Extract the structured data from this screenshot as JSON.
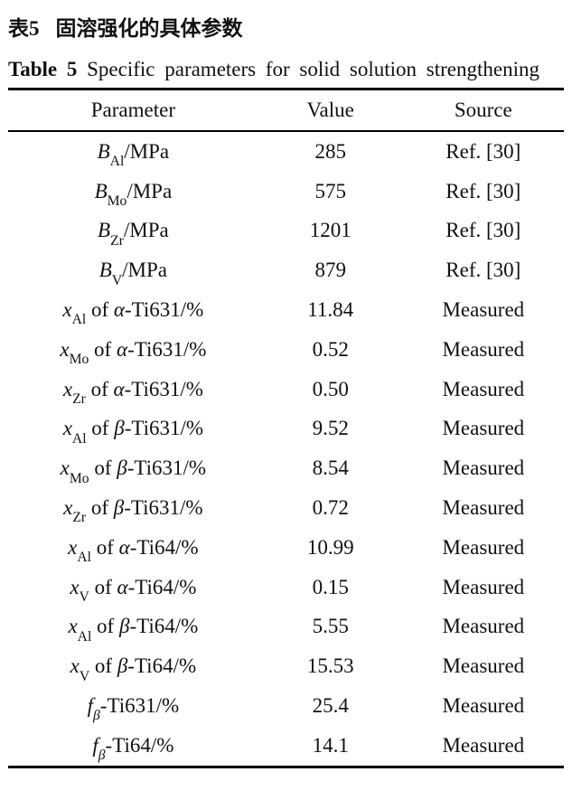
{
  "caption": {
    "zh_label": "表5",
    "zh_title": "固溶强化的具体参数",
    "en_label": "Table 5",
    "en_title": "Specific parameters for solid solution strengthening"
  },
  "table": {
    "columns": [
      "Parameter",
      "Value",
      "Source"
    ],
    "rows": [
      {
        "parameter": [
          {
            "text": "B",
            "style": "italic"
          },
          {
            "text": "Al",
            "style": "sub"
          },
          {
            "text": "/MPa",
            "style": "normal"
          }
        ],
        "value": "285",
        "source": "Ref. [30]"
      },
      {
        "parameter": [
          {
            "text": "B",
            "style": "italic"
          },
          {
            "text": "Mo",
            "style": "sub"
          },
          {
            "text": "/MPa",
            "style": "normal"
          }
        ],
        "value": "575",
        "source": "Ref. [30]"
      },
      {
        "parameter": [
          {
            "text": "B",
            "style": "italic"
          },
          {
            "text": "Zr",
            "style": "sub"
          },
          {
            "text": "/MPa",
            "style": "normal"
          }
        ],
        "value": "1201",
        "source": "Ref. [30]"
      },
      {
        "parameter": [
          {
            "text": "B",
            "style": "italic"
          },
          {
            "text": "V",
            "style": "sub"
          },
          {
            "text": "/MPa",
            "style": "normal"
          }
        ],
        "value": "879",
        "source": "Ref. [30]"
      },
      {
        "parameter": [
          {
            "text": "x",
            "style": "italic"
          },
          {
            "text": "Al",
            "style": "sub"
          },
          {
            "text": " of ",
            "style": "normal"
          },
          {
            "text": "α",
            "style": "italic"
          },
          {
            "text": "-Ti631/%",
            "style": "normal"
          }
        ],
        "value": "11.84",
        "source": "Measured"
      },
      {
        "parameter": [
          {
            "text": "x",
            "style": "italic"
          },
          {
            "text": "Mo",
            "style": "sub"
          },
          {
            "text": " of ",
            "style": "normal"
          },
          {
            "text": "α",
            "style": "italic"
          },
          {
            "text": "-Ti631/%",
            "style": "normal"
          }
        ],
        "value": "0.52",
        "source": "Measured"
      },
      {
        "parameter": [
          {
            "text": "x",
            "style": "italic"
          },
          {
            "text": "Zr",
            "style": "sub"
          },
          {
            "text": " of ",
            "style": "normal"
          },
          {
            "text": "α",
            "style": "italic"
          },
          {
            "text": "-Ti631/%",
            "style": "normal"
          }
        ],
        "value": "0.50",
        "source": "Measured"
      },
      {
        "parameter": [
          {
            "text": "x",
            "style": "italic"
          },
          {
            "text": "Al",
            "style": "sub"
          },
          {
            "text": " of ",
            "style": "normal"
          },
          {
            "text": "β",
            "style": "italic"
          },
          {
            "text": "-Ti631/%",
            "style": "normal"
          }
        ],
        "value": "9.52",
        "source": "Measured"
      },
      {
        "parameter": [
          {
            "text": "x",
            "style": "italic"
          },
          {
            "text": "Mo",
            "style": "sub"
          },
          {
            "text": " of ",
            "style": "normal"
          },
          {
            "text": "β",
            "style": "italic"
          },
          {
            "text": "-Ti631/%",
            "style": "normal"
          }
        ],
        "value": "8.54",
        "source": "Measured"
      },
      {
        "parameter": [
          {
            "text": "x",
            "style": "italic"
          },
          {
            "text": "Zr",
            "style": "sub"
          },
          {
            "text": " of ",
            "style": "normal"
          },
          {
            "text": "β",
            "style": "italic"
          },
          {
            "text": "-Ti631/%",
            "style": "normal"
          }
        ],
        "value": "0.72",
        "source": "Measured"
      },
      {
        "parameter": [
          {
            "text": "x",
            "style": "italic"
          },
          {
            "text": "Al",
            "style": "sub"
          },
          {
            "text": " of ",
            "style": "normal"
          },
          {
            "text": "α",
            "style": "italic"
          },
          {
            "text": "-Ti64/%",
            "style": "normal"
          }
        ],
        "value": "10.99",
        "source": "Measured"
      },
      {
        "parameter": [
          {
            "text": "x",
            "style": "italic"
          },
          {
            "text": "V",
            "style": "sub"
          },
          {
            "text": " of ",
            "style": "normal"
          },
          {
            "text": "α",
            "style": "italic"
          },
          {
            "text": "-Ti64/%",
            "style": "normal"
          }
        ],
        "value": "0.15",
        "source": "Measured"
      },
      {
        "parameter": [
          {
            "text": "x",
            "style": "italic"
          },
          {
            "text": "Al",
            "style": "sub"
          },
          {
            "text": " of ",
            "style": "normal"
          },
          {
            "text": "β",
            "style": "italic"
          },
          {
            "text": "-Ti64/%",
            "style": "normal"
          }
        ],
        "value": "5.55",
        "source": "Measured"
      },
      {
        "parameter": [
          {
            "text": "x",
            "style": "italic"
          },
          {
            "text": "V",
            "style": "sub"
          },
          {
            "text": " of ",
            "style": "normal"
          },
          {
            "text": "β",
            "style": "italic"
          },
          {
            "text": "-Ti64/%",
            "style": "normal"
          }
        ],
        "value": "15.53",
        "source": "Measured"
      },
      {
        "parameter": [
          {
            "text": "f",
            "style": "italic"
          },
          {
            "text": "β",
            "style": "sub-italic"
          },
          {
            "text": "-Ti631/%",
            "style": "normal"
          }
        ],
        "value": "25.4",
        "source": "Measured"
      },
      {
        "parameter": [
          {
            "text": "f",
            "style": "italic"
          },
          {
            "text": "β",
            "style": "sub-italic"
          },
          {
            "text": "-Ti64/%",
            "style": "normal"
          }
        ],
        "value": "14.1",
        "source": "Measured"
      }
    ]
  },
  "colors": {
    "text": "#111111",
    "rule": "#000000",
    "background": "#ffffff"
  }
}
